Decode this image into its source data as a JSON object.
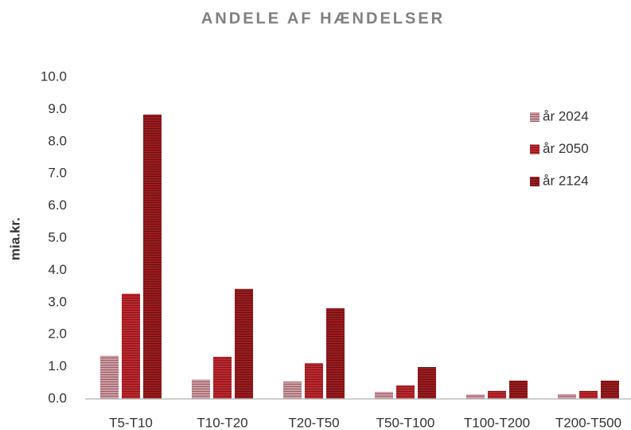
{
  "chart_data": {
    "type": "bar",
    "title": "ANDELE AF HÆNDELSER",
    "y_label": "mia.kr.",
    "categories": [
      "T5-T10",
      "T10-T20",
      "T20-T50",
      "T50-T100",
      "T100-T200",
      "T200-T500"
    ],
    "series": [
      {
        "name": "år 2024",
        "color": "#d49aa2",
        "values": [
          1.34,
          0.6,
          0.54,
          0.22,
          0.14,
          0.15
        ]
      },
      {
        "name": "år 2050",
        "color": "#c1272d",
        "values": [
          3.27,
          1.31,
          1.11,
          0.42,
          0.25,
          0.25
        ]
      },
      {
        "name": "år 2124",
        "color": "#9e1b1f",
        "values": [
          8.84,
          3.42,
          2.82,
          0.99,
          0.57,
          0.57
        ]
      }
    ],
    "ylim": [
      0,
      10
    ],
    "yticks": [
      {
        "value": 0,
        "label": "0.0"
      },
      {
        "value": 1,
        "label": "1.0"
      },
      {
        "value": 2,
        "label": "2.0"
      },
      {
        "value": 3,
        "label": "3.0"
      },
      {
        "value": 4,
        "label": "4.0"
      },
      {
        "value": 5,
        "label": "5.0"
      },
      {
        "value": 6,
        "label": "6.0"
      },
      {
        "value": 7,
        "label": "7.0"
      },
      {
        "value": 8,
        "label": "8.0"
      },
      {
        "value": 9,
        "label": "9.0"
      },
      {
        "value": 10,
        "label": "10.0"
      }
    ],
    "grid": false,
    "legend": "top-right"
  }
}
